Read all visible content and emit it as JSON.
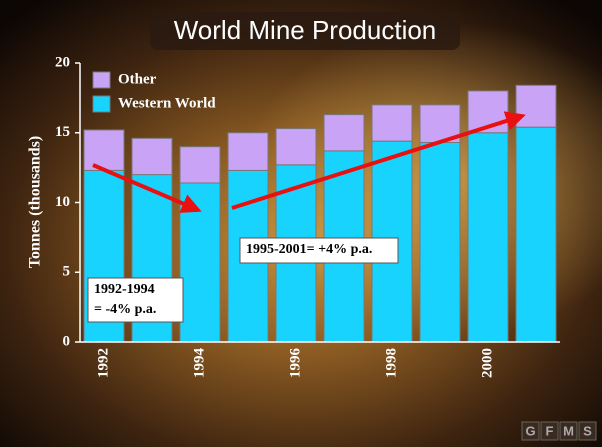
{
  "chart_data": {
    "type": "bar",
    "stacked": true,
    "title": "World Mine Production",
    "y_label": "Tonnes (thousands)",
    "categories": [
      "1992",
      null,
      "1994",
      null,
      "1996",
      null,
      "1998",
      null,
      "2000",
      null
    ],
    "series": [
      {
        "name": "Other",
        "color": "#c9a3f5",
        "values": [
          2.9,
          2.6,
          2.6,
          2.7,
          2.6,
          2.6,
          2.6,
          2.7,
          3.0,
          3.0
        ]
      },
      {
        "name": "Western World",
        "color": "#19d3ff",
        "values": [
          12.3,
          12.0,
          11.4,
          12.3,
          12.7,
          13.7,
          14.4,
          14.3,
          15.0,
          15.4
        ]
      }
    ],
    "ylim": [
      0,
      20
    ],
    "yticks": [
      0,
      5,
      10,
      15,
      20
    ],
    "grid": false,
    "legend": "top-left",
    "annotations": [
      [
        "1992-1994",
        "= -4% p.a."
      ],
      [
        "1995-2001= +4% p.a."
      ]
    ]
  },
  "logo": [
    "G",
    "F",
    "M",
    "S"
  ]
}
